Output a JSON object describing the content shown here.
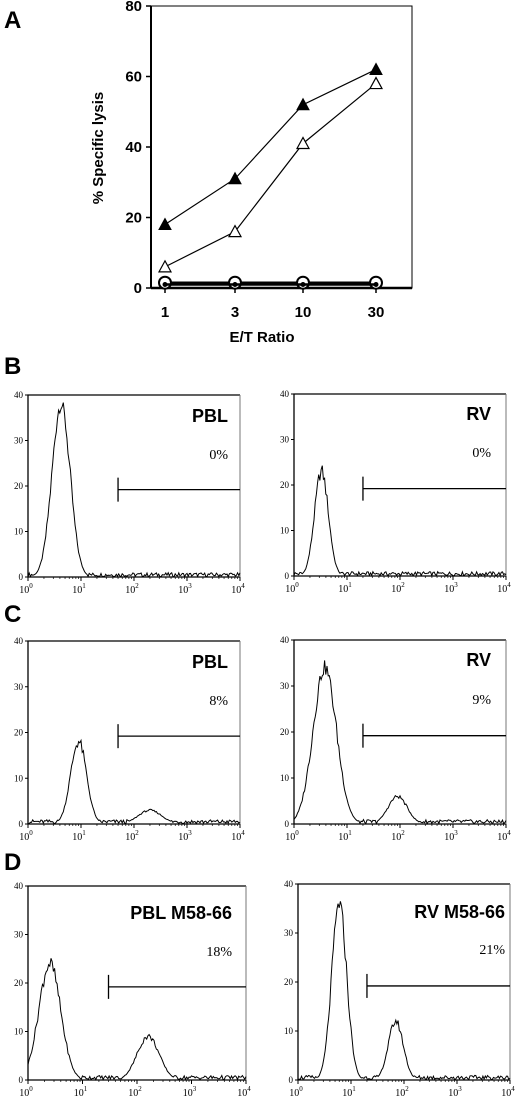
{
  "panel_labels": [
    "A",
    "B",
    "C",
    "D"
  ],
  "chart_data": [
    {
      "panel": "A",
      "type": "line",
      "xlabel": "E/T Ratio",
      "ylabel": "% Specific lysis",
      "ylim": [
        0,
        80
      ],
      "yticks": [
        0,
        20,
        40,
        60,
        80
      ],
      "categories": [
        "1",
        "3",
        "10",
        "30"
      ],
      "grid": false,
      "series": [
        {
          "marker": "filled-triangle",
          "values": [
            18,
            31,
            52,
            62
          ]
        },
        {
          "marker": "open-triangle",
          "values": [
            6,
            16,
            41,
            58
          ]
        },
        {
          "marker": "open-circle",
          "values": [
            1.5,
            1.5,
            1.5,
            1.5
          ]
        },
        {
          "marker": "filled-circle",
          "values": [
            1,
            1,
            1,
            1
          ]
        }
      ]
    },
    {
      "panel": "B",
      "type": "area",
      "title": "PBL",
      "percent": "0%",
      "ylim": [
        0,
        40
      ],
      "yticks": [
        "0",
        "10",
        "20",
        "30",
        "40"
      ],
      "xscale": "log",
      "xlim": [
        1,
        10000
      ],
      "xticks": [
        {
          "b": "10",
          "e": "0"
        },
        {
          "b": "10",
          "e": "1"
        },
        {
          "b": "10",
          "e": "2"
        },
        {
          "b": "10",
          "e": "3"
        },
        {
          "b": "10",
          "e": "4"
        }
      ],
      "gate_start": 50,
      "gate_end": 10000,
      "peaks": [
        {
          "center": 4.2,
          "sigma": 0.17,
          "height": 38
        }
      ]
    },
    {
      "panel": "B",
      "type": "area",
      "title": "RV",
      "percent": "0%",
      "ylim": [
        0,
        40
      ],
      "yticks": [
        "0",
        "10",
        "20",
        "30",
        "40"
      ],
      "xscale": "log",
      "xlim": [
        1,
        10000
      ],
      "xticks": [
        {
          "b": "10",
          "e": "0"
        },
        {
          "b": "10",
          "e": "1"
        },
        {
          "b": "10",
          "e": "2"
        },
        {
          "b": "10",
          "e": "3"
        },
        {
          "b": "10",
          "e": "4"
        }
      ],
      "gate_start": 20,
      "gate_end": 10000,
      "peaks": [
        {
          "center": 3.3,
          "sigma": 0.13,
          "height": 23
        }
      ]
    },
    {
      "panel": "C",
      "type": "area",
      "title": "PBL",
      "percent": "8%",
      "ylim": [
        0,
        40
      ],
      "yticks": [
        "0",
        "10",
        "20",
        "30",
        "40"
      ],
      "xscale": "log",
      "xlim": [
        1,
        10000
      ],
      "xticks": [
        {
          "b": "10",
          "e": "0"
        },
        {
          "b": "10",
          "e": "1"
        },
        {
          "b": "10",
          "e": "2"
        },
        {
          "b": "10",
          "e": "3"
        },
        {
          "b": "10",
          "e": "4"
        }
      ],
      "gate_start": 50,
      "gate_end": 10000,
      "peaks": [
        {
          "center": 9,
          "sigma": 0.15,
          "height": 18
        },
        {
          "center": 200,
          "sigma": 0.22,
          "height": 3
        }
      ]
    },
    {
      "panel": "C",
      "type": "area",
      "title": "RV",
      "percent": "9%",
      "ylim": [
        0,
        40
      ],
      "yticks": [
        "0",
        "10",
        "20",
        "30",
        "40"
      ],
      "xscale": "log",
      "xlim": [
        1,
        10000
      ],
      "xticks": [
        {
          "b": "10",
          "e": "0"
        },
        {
          "b": "10",
          "e": "1"
        },
        {
          "b": "10",
          "e": "2"
        },
        {
          "b": "10",
          "e": "3"
        },
        {
          "b": "10",
          "e": "4"
        }
      ],
      "gate_start": 20,
      "gate_end": 10000,
      "peaks": [
        {
          "center": 3.8,
          "sigma": 0.22,
          "height": 34
        },
        {
          "center": 90,
          "sigma": 0.18,
          "height": 6
        }
      ]
    },
    {
      "panel": "D",
      "type": "area",
      "title": "PBL M58-66",
      "percent": "18%",
      "ylim": [
        0,
        40
      ],
      "yticks": [
        "0",
        "10",
        "20",
        "30",
        "40"
      ],
      "xscale": "log",
      "xlim": [
        1,
        10000
      ],
      "xticks": [
        {
          "b": "10",
          "e": "0"
        },
        {
          "b": "10",
          "e": "1"
        },
        {
          "b": "10",
          "e": "2"
        },
        {
          "b": "10",
          "e": "3"
        },
        {
          "b": "10",
          "e": "4"
        }
      ],
      "gate_start": 30,
      "gate_end": 10000,
      "peaks": [
        {
          "center": 2.5,
          "sigma": 0.2,
          "height": 24
        },
        {
          "center": 160,
          "sigma": 0.2,
          "height": 9
        }
      ]
    },
    {
      "panel": "D",
      "type": "area",
      "title": "RV M58-66",
      "percent": "21%",
      "ylim": [
        0,
        40
      ],
      "yticks": [
        "0",
        "10",
        "20",
        "30",
        "40"
      ],
      "xscale": "log",
      "xlim": [
        1,
        10000
      ],
      "xticks": [
        {
          "b": "10",
          "e": "0"
        },
        {
          "b": "10",
          "e": "1"
        },
        {
          "b": "10",
          "e": "2"
        },
        {
          "b": "10",
          "e": "3"
        },
        {
          "b": "10",
          "e": "4"
        }
      ],
      "gate_start": 20,
      "gate_end": 10000,
      "peaks": [
        {
          "center": 6,
          "sigma": 0.14,
          "height": 36
        },
        {
          "center": 70,
          "sigma": 0.14,
          "height": 12
        }
      ]
    }
  ]
}
